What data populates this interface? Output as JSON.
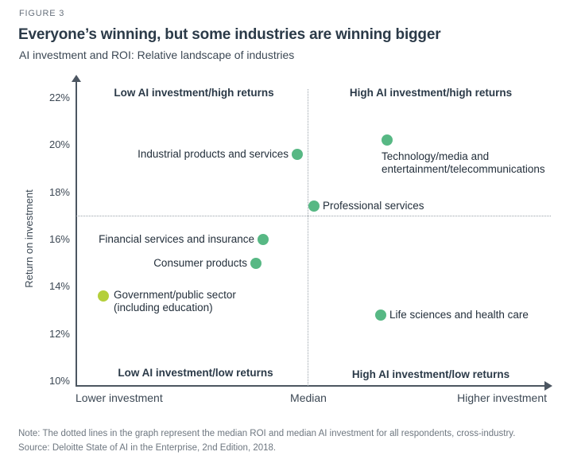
{
  "header": {
    "figure_label": "FIGURE 3",
    "title": "Everyone’s winning, but some industries are winning bigger",
    "subtitle": "AI investment and ROI: Relative landscape of industries"
  },
  "colors": {
    "dot_green": "#57b884",
    "dot_yellow_green": "#b4cf3b",
    "axis": "#4c5661",
    "dotted_line": "#98a1a9",
    "heading_navy": "#2b3a48",
    "footnote_gray": "#6e7780"
  },
  "chart_data": {
    "type": "scatter",
    "title": "Everyone’s winning, but some industries are winning bigger",
    "subtitle": "AI investment and ROI: Relative landscape of industries",
    "ylabel": "Return on investment",
    "y_axis": {
      "min": 10,
      "max": 22,
      "unit": "%",
      "ticks": [
        {
          "value": 22,
          "label": "22%"
        },
        {
          "value": 20,
          "label": "20%"
        },
        {
          "value": 18,
          "label": "18%"
        },
        {
          "value": 16,
          "label": "16%"
        },
        {
          "value": 14,
          "label": "14%"
        },
        {
          "value": 12,
          "label": "12%"
        },
        {
          "value": 10,
          "label": "10%"
        }
      ]
    },
    "x_axis": {
      "label_left": "Lower investment",
      "label_center": "Median",
      "label_right": "Higher investment",
      "scale": "relative AI investment"
    },
    "median_roi_pct": 17.0,
    "median_investment_x_rel": 0.489,
    "quadrant_labels": {
      "top_left": "Low AI investment/high returns",
      "top_right": "High AI investment/high returns",
      "bottom_left": "Low AI investment/low returns",
      "bottom_right": "High AI investment/low returns"
    },
    "points": [
      {
        "label": "Industrial products and services",
        "roi_pct": 19.6,
        "x_rel": 0.466,
        "color": "#57b884",
        "label_side": "left"
      },
      {
        "label": "Technology/media and\nentertainment/telecommunications",
        "roi_pct": 20.2,
        "x_rel": 0.655,
        "color": "#57b884",
        "label_side": "below"
      },
      {
        "label": "Professional services",
        "roi_pct": 17.4,
        "x_rel": 0.501,
        "color": "#57b884",
        "label_side": "right"
      },
      {
        "label": "Financial services and insurance",
        "roi_pct": 16.0,
        "x_rel": 0.394,
        "color": "#57b884",
        "label_side": "left"
      },
      {
        "label": "Consumer products",
        "roi_pct": 15.0,
        "x_rel": 0.379,
        "color": "#57b884",
        "label_side": "left"
      },
      {
        "label": "Government/public sector\n(including education)",
        "roi_pct": 13.6,
        "x_rel": 0.057,
        "color": "#b4cf3b",
        "label_side": "right-top"
      },
      {
        "label": "Life sciences and health care",
        "roi_pct": 12.8,
        "x_rel": 0.641,
        "color": "#57b884",
        "label_side": "right"
      }
    ],
    "grid": false,
    "legend": false
  },
  "footnotes": {
    "note": "Note: The dotted lines in the graph represent the median ROI and median AI investment for all respondents, cross-industry.",
    "source": "Source: Deloitte State of AI in the Enterprise, 2nd Edition, 2018."
  }
}
